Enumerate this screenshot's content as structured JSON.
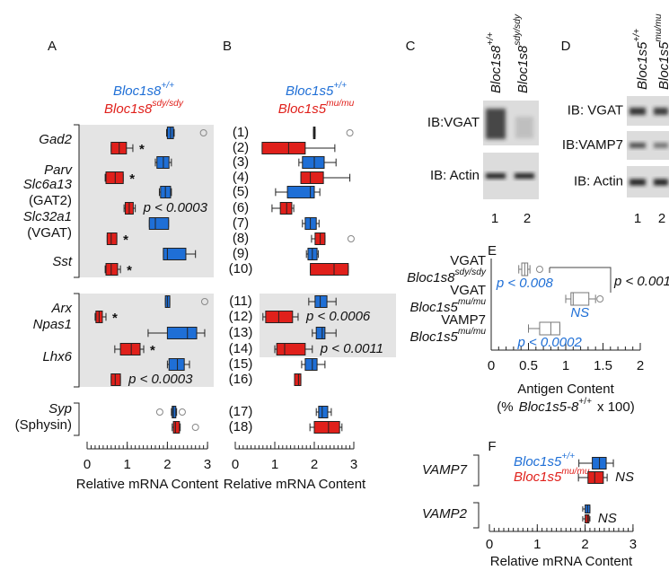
{
  "chart_data": [
    {
      "type": "box",
      "title": "A",
      "xlabel": "Relative mRNA Content",
      "xlim": [
        0,
        3
      ],
      "xticks": [
        0,
        1,
        2,
        3
      ],
      "categories": [
        "Gad2",
        "Parv",
        "Slc6a13",
        "Slc32a1",
        "Sst",
        "Arx",
        "Npas1",
        "Lhx6",
        "Syp"
      ],
      "category_notes": [
        null,
        null,
        "(GAT2)",
        "(VGAT)",
        null,
        null,
        null,
        null,
        "(Sphysin)"
      ],
      "series": [
        {
          "name": "Bloc1s8",
          "name_sup": "+/+",
          "color": "#1f6fd6",
          "boxes": [
            {
              "whislo": 1.98,
              "q1": 2.0,
              "med": 2.08,
              "q3": 2.15,
              "whishi": 2.17,
              "fliers": [
                2.9
              ]
            },
            {
              "whislo": 1.7,
              "q1": 1.74,
              "med": 1.9,
              "q3": 2.04,
              "whishi": 2.1
            },
            {
              "whislo": 1.8,
              "q1": 1.83,
              "med": 1.95,
              "q3": 2.08,
              "whishi": 2.1
            },
            {
              "whislo": 1.55,
              "q1": 1.55,
              "med": 1.7,
              "q3": 2.03,
              "whishi": 2.03
            },
            {
              "whislo": 1.9,
              "q1": 1.9,
              "med": 2.0,
              "q3": 2.46,
              "whishi": 2.7
            },
            {
              "whislo": 1.95,
              "q1": 1.95,
              "med": 2.0,
              "q3": 2.06,
              "whishi": 2.06,
              "fliers": [
                2.93
              ]
            },
            {
              "whislo": 1.52,
              "q1": 2.0,
              "med": 2.5,
              "q3": 2.73,
              "whishi": 2.93
            },
            {
              "whislo": 2.0,
              "q1": 2.04,
              "med": 2.25,
              "q3": 2.42,
              "whishi": 2.55
            },
            {
              "whislo": 2.1,
              "q1": 2.12,
              "med": 2.15,
              "q3": 2.21,
              "whishi": 2.23,
              "fliers": [
                1.81,
                2.37
              ]
            }
          ]
        },
        {
          "name": "Bloc1s8",
          "name_sup": "sdy/sdy",
          "color": "#e0201b",
          "boxes": [
            {
              "whislo": 0.6,
              "q1": 0.6,
              "med": 0.8,
              "q3": 0.98,
              "whishi": 1.14
            },
            {
              "whislo": 0.45,
              "q1": 0.47,
              "med": 0.7,
              "q3": 0.9,
              "whishi": 0.9
            },
            {
              "whislo": 0.92,
              "q1": 0.95,
              "med": 1.05,
              "q3": 1.15,
              "whishi": 1.2
            },
            {
              "whislo": 0.5,
              "q1": 0.5,
              "med": 0.6,
              "q3": 0.74,
              "whishi": 0.74
            },
            {
              "whislo": 0.45,
              "q1": 0.47,
              "med": 0.6,
              "q3": 0.76,
              "whishi": 0.83
            },
            {
              "whislo": 0.2,
              "q1": 0.22,
              "med": 0.3,
              "q3": 0.38,
              "whishi": 0.47
            },
            {
              "whislo": 0.69,
              "q1": 0.83,
              "med": 1.1,
              "q3": 1.32,
              "whishi": 1.41
            },
            {
              "whislo": 0.6,
              "q1": 0.6,
              "med": 0.7,
              "q3": 0.83,
              "whishi": 0.83
            },
            {
              "whislo": 2.12,
              "q1": 2.15,
              "med": 2.2,
              "q3": 2.3,
              "whishi": 2.32,
              "fliers": [
                2.7
              ]
            }
          ],
          "annotations": [
            "*",
            "*",
            "p < 0.0003",
            "*",
            "*",
            "*",
            "*",
            "p < 0.0003",
            null
          ]
        }
      ]
    },
    {
      "type": "box",
      "title": "B",
      "xlabel": "Relative mRNA Content",
      "xlim": [
        0,
        3
      ],
      "xticks": [
        0,
        1,
        2,
        3
      ],
      "row_labels": [
        "(1)",
        "(2)",
        "(3)",
        "(4)",
        "(5)",
        "(6)",
        "(7)",
        "(8)",
        "(9)",
        "(10)",
        "(11)",
        "(12)",
        "(13)",
        "(14)",
        "(15)",
        "(16)",
        "(17)",
        "(18)"
      ],
      "series": [
        {
          "name": "Bloc1s5",
          "name_sup": "+/+",
          "color": "#1f6fd6",
          "boxes": [
            {
              "whislo": 1.98,
              "q1": 1.98,
              "med": 2.0,
              "q3": 2.02,
              "whishi": 2.02,
              "fliers": [
                2.9
              ]
            },
            {
              "whislo": 1.61,
              "q1": 1.7,
              "med": 2.0,
              "q3": 2.25,
              "whishi": 2.55
            },
            {
              "whislo": 1.02,
              "q1": 1.32,
              "med": 1.9,
              "q3": 2.0,
              "whishi": 2.14
            },
            {
              "whislo": 1.7,
              "q1": 1.77,
              "med": 1.9,
              "q3": 2.05,
              "whishi": 2.12
            },
            {
              "whislo": 1.8,
              "q1": 1.84,
              "med": 1.95,
              "q3": 2.07,
              "whishi": 2.1
            },
            {
              "whislo": 1.86,
              "q1": 2.02,
              "med": 2.15,
              "q3": 2.32,
              "whishi": 2.55
            },
            {
              "whislo": 1.95,
              "q1": 2.05,
              "med": 2.2,
              "q3": 2.27,
              "whishi": 2.55
            },
            {
              "whislo": 1.68,
              "q1": 1.77,
              "med": 1.95,
              "q3": 2.07,
              "whishi": 2.27
            },
            {
              "whislo": 2.05,
              "q1": 2.11,
              "med": 2.2,
              "q3": 2.34,
              "whishi": 2.43
            }
          ]
        },
        {
          "name": "Bloc1s5",
          "name_sup": "mu/mu",
          "color": "#e0201b",
          "boxes": [
            {
              "whislo": 0.68,
              "q1": 0.68,
              "med": 1.35,
              "q3": 1.77,
              "whishi": 2.52
            },
            {
              "whislo": 1.66,
              "q1": 1.66,
              "med": 1.9,
              "q3": 2.23,
              "whishi": 2.9
            },
            {
              "whislo": 0.93,
              "q1": 1.14,
              "med": 1.3,
              "q3": 1.43,
              "whishi": 1.48
            },
            {
              "whislo": 1.93,
              "q1": 2.02,
              "med": 2.15,
              "q3": 2.27,
              "whishi": 2.27,
              "fliers": [
                2.93
              ]
            },
            {
              "whislo": 1.9,
              "q1": 1.9,
              "med": 2.5,
              "q3": 2.86,
              "whishi": 2.86
            },
            {
              "whislo": 0.7,
              "q1": 0.77,
              "med": 1.1,
              "q3": 1.45,
              "whishi": 1.59
            },
            {
              "whislo": 1.0,
              "q1": 1.05,
              "med": 1.25,
              "q3": 1.77,
              "whishi": 1.95
            },
            {
              "whislo": 1.5,
              "q1": 1.5,
              "med": 1.6,
              "q3": 1.66,
              "whishi": 1.66
            },
            {
              "whislo": 1.89,
              "q1": 2.0,
              "med": 2.36,
              "q3": 2.64,
              "whishi": 2.7
            }
          ],
          "annotations": [
            null,
            null,
            null,
            null,
            null,
            "p < 0.0006",
            "p < 0.0011",
            null,
            null
          ]
        }
      ]
    },
    {
      "type": "box",
      "title": "E",
      "xlabel": "Antigen Content",
      "xlabel_parts": [
        "(%",
        "Bloc1s5-8",
        "+/+",
        "x 100)"
      ],
      "xlim": [
        0,
        2
      ],
      "xticks": [
        0,
        0.5,
        1,
        1.5,
        2
      ],
      "categories": [
        "VGAT",
        "VGAT",
        "VAMP7"
      ],
      "subcategories": [
        "Bloc1s8",
        "Bloc1s5",
        "Bloc1s5"
      ],
      "subcategory_sups": [
        "sdy/sdy",
        "mu/mu",
        "mu/mu"
      ],
      "annotation_color": "#1f6fd6",
      "comparison": "p < 0.001",
      "series": [
        {
          "color": "#ffffff",
          "boxes": [
            {
              "whislo": 0.37,
              "q1": 0.41,
              "med": 0.45,
              "q3": 0.49,
              "whishi": 0.52,
              "fliers": [
                0.65
              ]
            },
            {
              "whislo": 1.0,
              "q1": 1.07,
              "med": 1.1,
              "q3": 1.31,
              "whishi": 1.4,
              "fliers": [
                1.46
              ]
            },
            {
              "whislo": 0.5,
              "q1": 0.65,
              "med": 0.8,
              "q3": 0.92,
              "whishi": 0.92
            }
          ],
          "annotations": [
            "p < 0.008",
            "NS",
            "p < 0.0002"
          ]
        }
      ]
    },
    {
      "type": "box",
      "title": "F",
      "xlabel": "Relative mRNA Content",
      "xlim": [
        0,
        3
      ],
      "xticks": [
        0,
        1,
        2,
        3
      ],
      "categories": [
        "VAMP7",
        "VAMP2"
      ],
      "series": [
        {
          "name": "Bloc1s5",
          "name_sup": "+/+",
          "color": "#1f6fd6",
          "boxes": [
            {
              "whislo": 1.87,
              "q1": 2.15,
              "med": 2.3,
              "q3": 2.44,
              "whishi": 2.59
            },
            {
              "whislo": 1.95,
              "q1": 2.0,
              "med": 2.05,
              "q3": 2.1,
              "whishi": 2.1
            }
          ]
        },
        {
          "name": "Bloc1s5",
          "name_sup": "mu/mu",
          "color": "#e0201b",
          "boxes": [
            {
              "whislo": 1.86,
              "q1": 2.06,
              "med": 2.2,
              "q3": 2.38,
              "whishi": 2.46
            },
            {
              "whislo": 1.95,
              "q1": 2.0,
              "med": 2.05,
              "q3": 2.08,
              "whishi": 2.1
            }
          ],
          "annotations": [
            "NS",
            "NS"
          ]
        }
      ]
    }
  ],
  "blots": [
    {
      "title": "C",
      "lanes": [
        {
          "name": "Bloc1s8",
          "sup": "+/+"
        },
        {
          "name": "Bloc1s8",
          "sup": "sdy/sdy"
        }
      ],
      "rows": [
        "IB:VGAT",
        "IB: Actin"
      ],
      "lane_numbers": [
        "1",
        "2"
      ]
    },
    {
      "title": "D",
      "lanes": [
        {
          "name": "Bloc1s5",
          "sup": "+/+"
        },
        {
          "name": "Bloc1s5",
          "sup": "mu/mu"
        }
      ],
      "rows": [
        "IB: VGAT",
        "IB:VAMP7",
        "IB: Actin"
      ],
      "lane_numbers": [
        "1",
        "2"
      ]
    }
  ]
}
